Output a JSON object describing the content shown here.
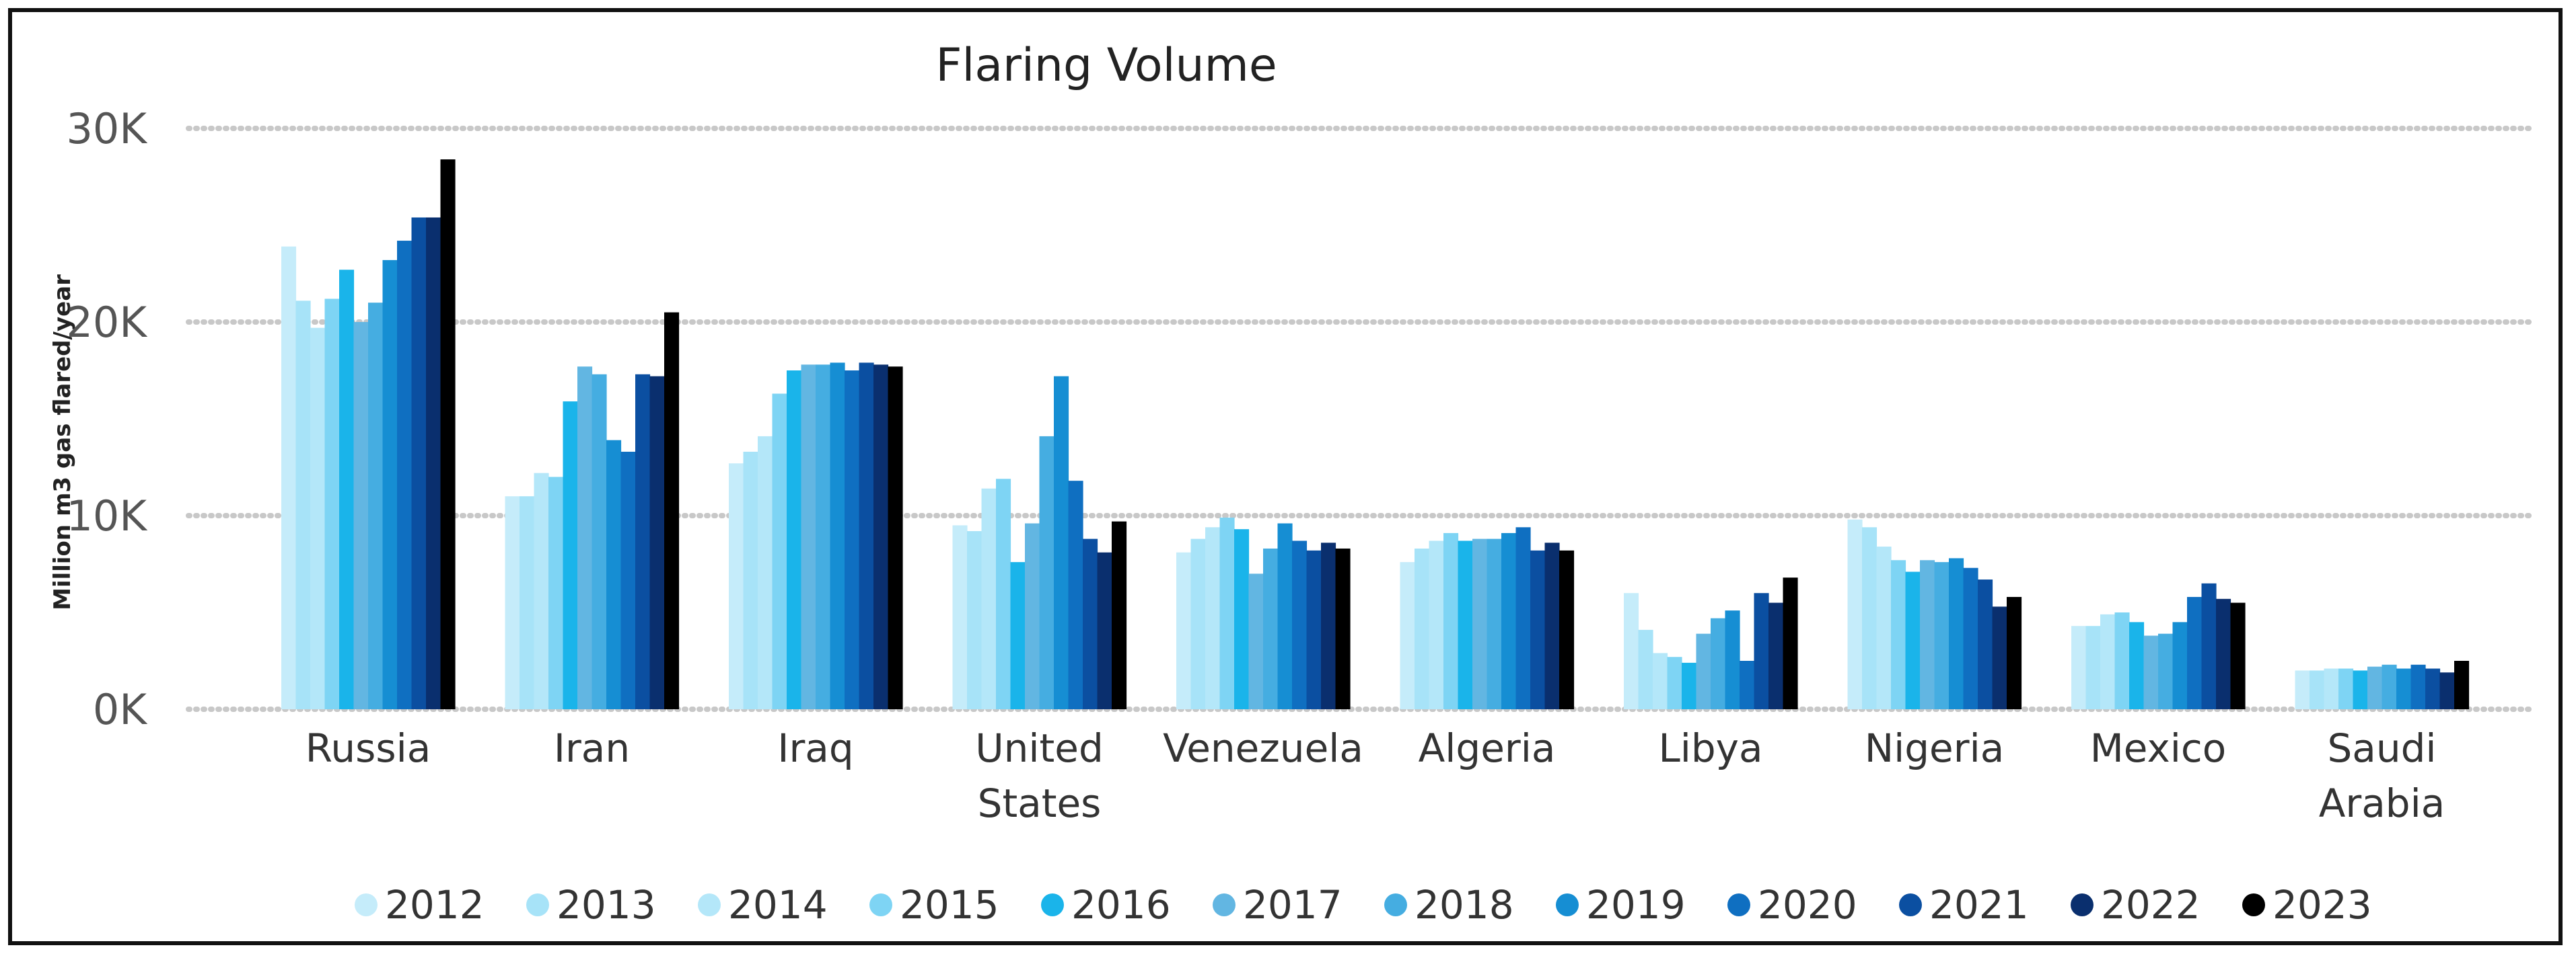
{
  "chart_data": {
    "type": "bar",
    "title": "Flaring Volume",
    "ylabel": "Million m3 gas flared/year",
    "xlabel": "",
    "ylim": [
      0,
      30000
    ],
    "yticks": [
      0,
      10000,
      20000,
      30000
    ],
    "ytick_labels": [
      "0K",
      "10K",
      "20K",
      "30K"
    ],
    "grid": true,
    "legend_position": "bottom",
    "categories": [
      "Russia",
      "Iran",
      "Iraq",
      "United States",
      "Venezuela",
      "Algeria",
      "Libya",
      "Nigeria",
      "Mexico",
      "Saudi Arabia"
    ],
    "category_label_lines": [
      [
        "Russia"
      ],
      [
        "Iran"
      ],
      [
        "Iraq"
      ],
      [
        "United",
        "States"
      ],
      [
        "Venezuela"
      ],
      [
        "Algeria"
      ],
      [
        "Libya"
      ],
      [
        "Nigeria"
      ],
      [
        "Mexico"
      ],
      [
        "Saudi",
        "Arabia"
      ]
    ],
    "series": [
      {
        "name": "2012",
        "color": "#c5ecfa",
        "values": [
          23900,
          11000,
          12700,
          9500,
          8100,
          7600,
          6000,
          9800,
          4300,
          2000
        ]
      },
      {
        "name": "2013",
        "color": "#a7e3f8",
        "values": [
          21100,
          11000,
          13300,
          9200,
          8800,
          8300,
          4100,
          9400,
          4300,
          2000
        ]
      },
      {
        "name": "2014",
        "color": "#b4e7f9",
        "values": [
          19700,
          12200,
          14100,
          11400,
          9400,
          8700,
          2900,
          8400,
          4900,
          2100
        ]
      },
      {
        "name": "2015",
        "color": "#7ed4f4",
        "values": [
          21200,
          12000,
          16300,
          11900,
          9900,
          9100,
          2700,
          7700,
          5000,
          2100
        ]
      },
      {
        "name": "2016",
        "color": "#1ab4ea",
        "values": [
          22700,
          15900,
          17500,
          7600,
          9300,
          8700,
          2400,
          7100,
          4500,
          2000
        ]
      },
      {
        "name": "2017",
        "color": "#62b6e2",
        "values": [
          20000,
          17700,
          17800,
          9600,
          7000,
          8800,
          3900,
          7700,
          3800,
          2200
        ]
      },
      {
        "name": "2018",
        "color": "#45ade1",
        "values": [
          21000,
          17300,
          17800,
          14100,
          8300,
          8800,
          4700,
          7600,
          3900,
          2300
        ]
      },
      {
        "name": "2019",
        "color": "#168ed3",
        "values": [
          23200,
          13900,
          17900,
          17200,
          9600,
          9100,
          5100,
          7800,
          4500,
          2100
        ]
      },
      {
        "name": "2020",
        "color": "#0f6fc1",
        "values": [
          24200,
          13300,
          17500,
          11800,
          8700,
          9400,
          2500,
          7300,
          5800,
          2300
        ]
      },
      {
        "name": "2021",
        "color": "#0b4fa1",
        "values": [
          25400,
          17300,
          17900,
          8800,
          8200,
          8200,
          6000,
          6700,
          6500,
          2100
        ]
      },
      {
        "name": "2022",
        "color": "#0a2f6e",
        "values": [
          25400,
          17200,
          17800,
          8100,
          8600,
          8600,
          5500,
          5300,
          5700,
          1900
        ]
      },
      {
        "name": "2023",
        "color": "#000000",
        "values": [
          28400,
          20500,
          17700,
          9700,
          8300,
          8200,
          6800,
          5800,
          5500,
          2500
        ]
      }
    ]
  }
}
